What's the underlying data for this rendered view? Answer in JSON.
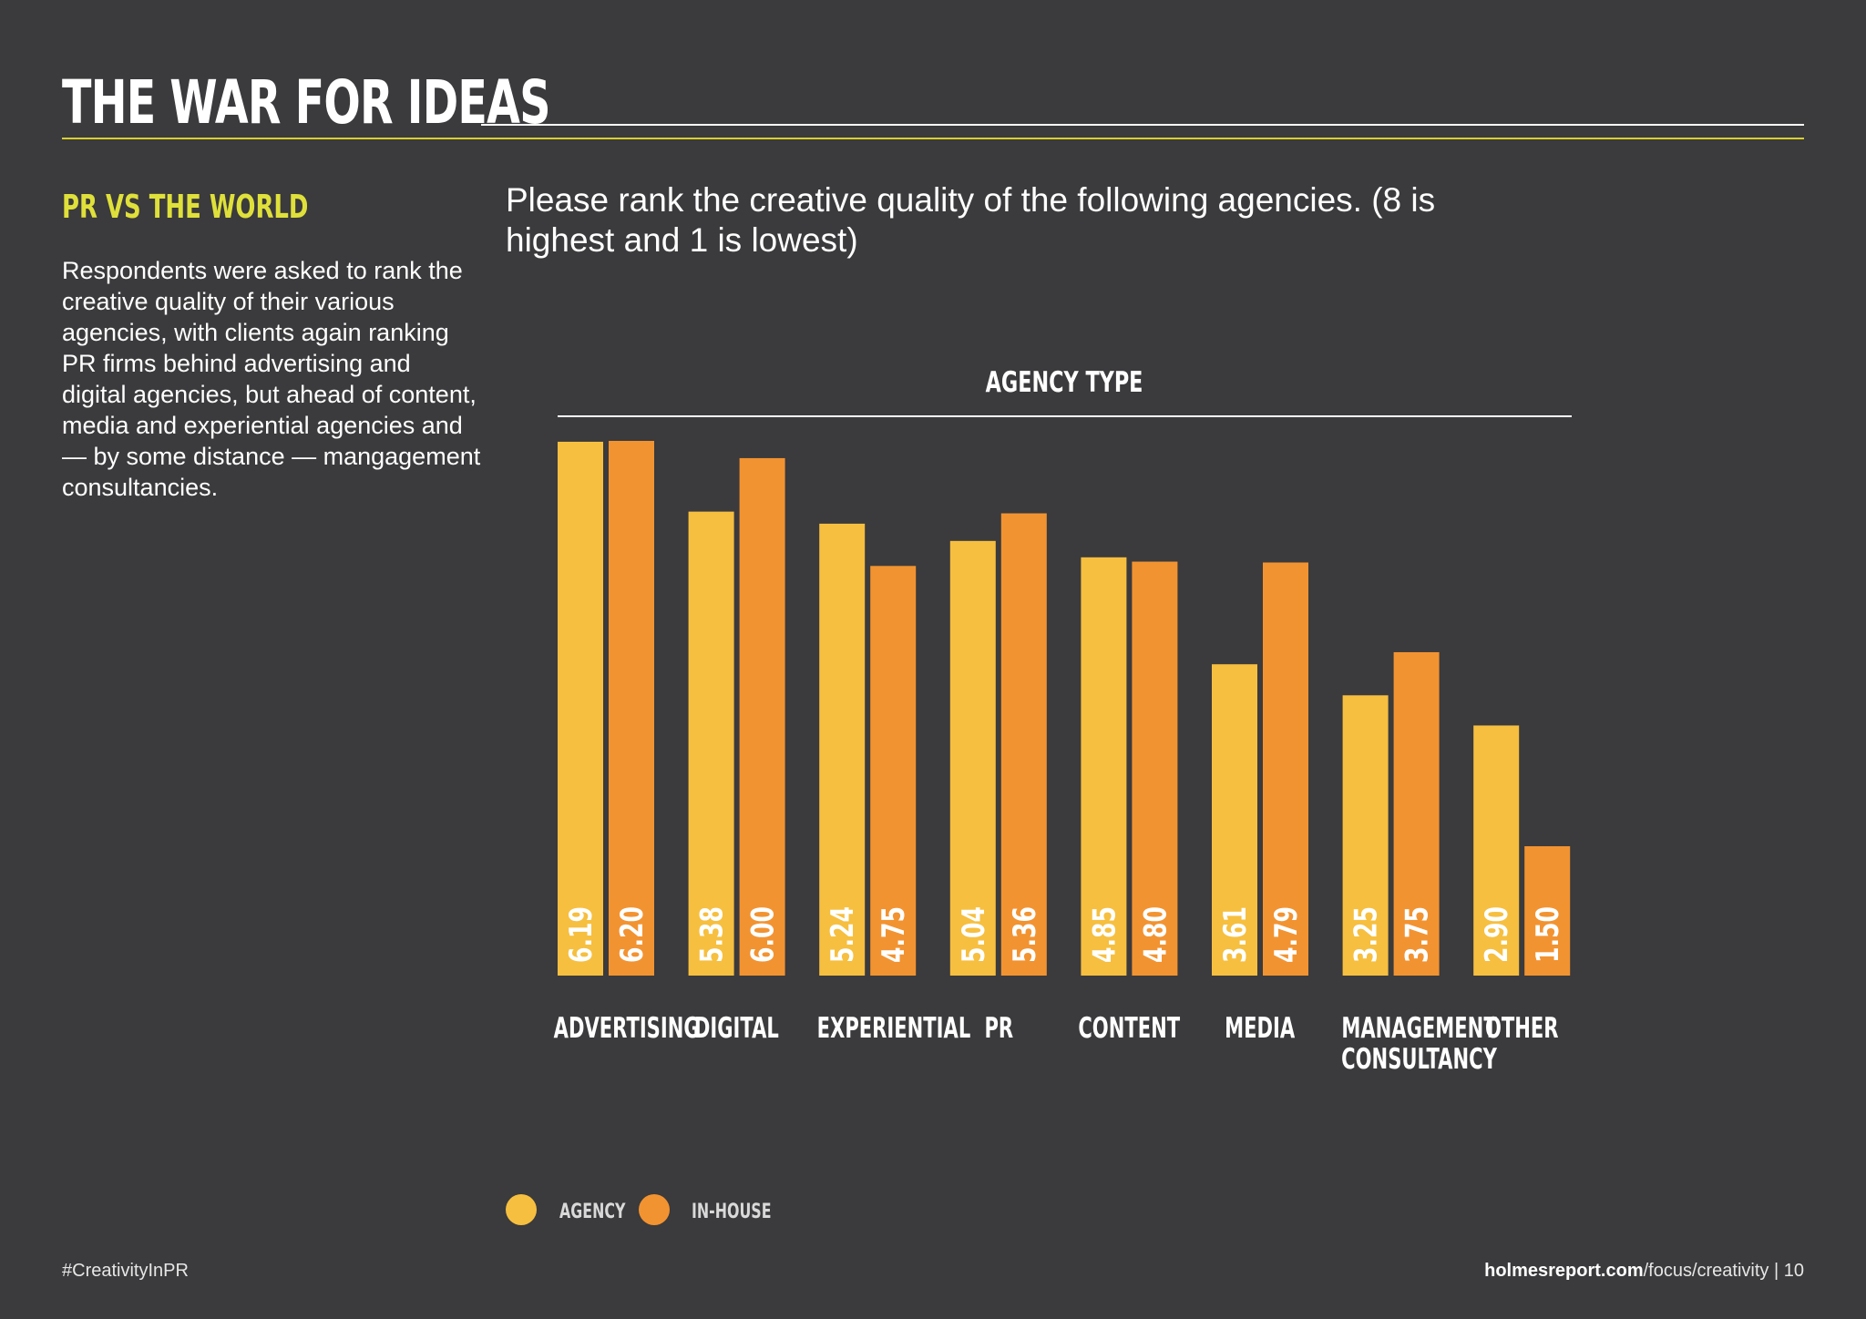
{
  "header": {
    "title": "THE WAR FOR IDEAS"
  },
  "sidebar": {
    "heading": "PR VS THE WORLD",
    "body": "Respondents were asked to rank the creative quality of their various agencies, with clients again ranking PR firms behind advertising and digital agencies, but ahead of content, media and experiential agencies and — by some distance — mangagement consultancies."
  },
  "colors": {
    "background": "#3b3a3c",
    "agency": "#f6bf3f",
    "in_house": "#f29331",
    "accent_yellow": "#dfe03a"
  },
  "chart_data": {
    "type": "bar",
    "title": "Please rank the creative quality of the following agencies. (8 is highest and 1 is lowest)",
    "xlabel": "AGENCY TYPE",
    "ylabel": "",
    "ylim": [
      0,
      6.2
    ],
    "grid": false,
    "legend_position": "bottom-left",
    "categories": [
      "ADVERTISING",
      "DIGITAL",
      "EXPERIENTIAL",
      "PR",
      "CONTENT",
      "MEDIA",
      "MANAGEMENT\nCONSULTANCY",
      "OTHER"
    ],
    "series": [
      {
        "name": "AGENCY",
        "color": "#f6bf3f",
        "values": [
          6.19,
          5.38,
          5.24,
          5.04,
          4.85,
          3.61,
          3.25,
          2.9
        ]
      },
      {
        "name": "IN-HOUSE",
        "color": "#f29331",
        "values": [
          6.2,
          6.0,
          4.75,
          5.36,
          4.8,
          4.79,
          3.75,
          1.5
        ]
      }
    ],
    "data_labels": [
      [
        "6.19",
        "5.38",
        "5.24",
        "5.04",
        "4.85",
        "3.61",
        "3.25",
        "2.90"
      ],
      [
        "6.20",
        "6.00",
        "4.75",
        "5.36",
        "4.80",
        "4.79",
        "3.75",
        "1.50"
      ]
    ]
  },
  "footer": {
    "hashtag": "#CreativityInPR",
    "site_bold": "holmesreport.com",
    "site_path": "/focus/creativity",
    "separator": " | ",
    "page_number": "10"
  }
}
